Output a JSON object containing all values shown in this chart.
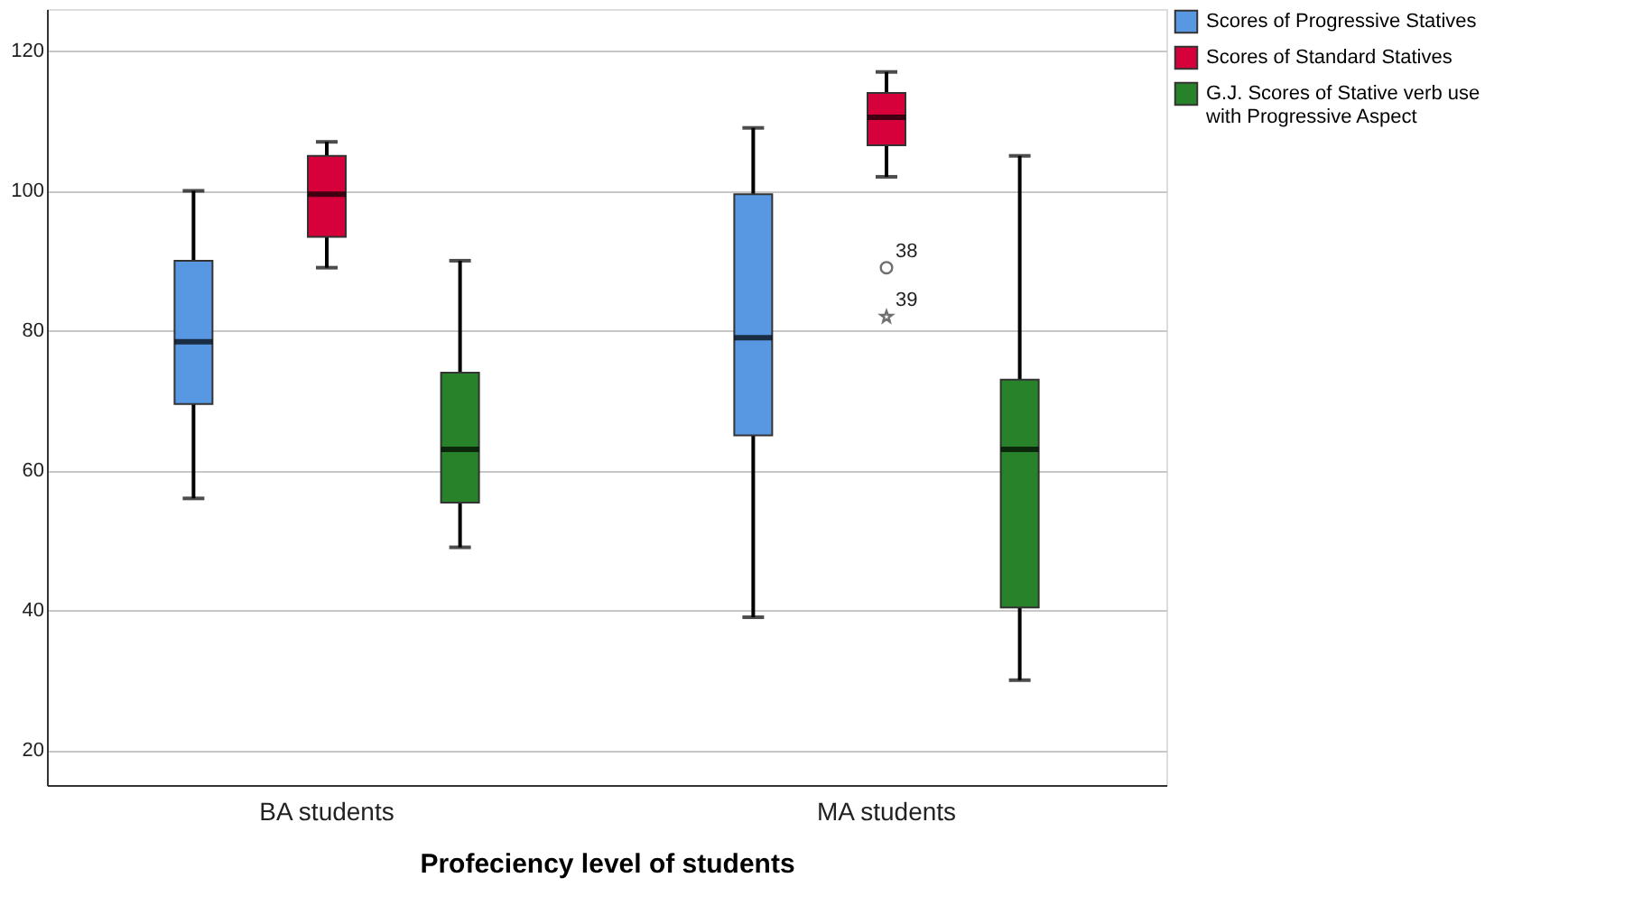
{
  "chart_data": {
    "type": "box",
    "xlabel": "Profeciency level of students",
    "categories": [
      "BA students",
      "MA students"
    ],
    "series": [
      {
        "name": "Scores of Progressive Statives",
        "color": "#5898e3",
        "boxes": [
          {
            "low": 56,
            "q1": 69.5,
            "median": 78.4,
            "q3": 90,
            "high": 100
          },
          {
            "low": 39,
            "q1": 65,
            "median": 79,
            "q3": 99.5,
            "high": 109
          }
        ]
      },
      {
        "name": "Scores of Standard Statives",
        "color": "#d6003a",
        "boxes": [
          {
            "low": 89,
            "q1": 93.4,
            "median": 99.5,
            "q3": 105,
            "high": 107
          },
          {
            "low": 102,
            "q1": 106.5,
            "median": 110.5,
            "q3": 114,
            "high": 117,
            "outliers": [
              89,
              82
            ]
          }
        ]
      },
      {
        "name": "G.J. Scores of Stative verb use with Progressive Aspect",
        "color": "#27822a",
        "boxes": [
          {
            "low": 49,
            "q1": 55.4,
            "median": 63,
            "q3": 74,
            "high": 90
          },
          {
            "low": 30,
            "q1": 40.4,
            "median": 63,
            "q3": 73,
            "high": 105
          }
        ]
      }
    ],
    "annotations": [
      "38",
      "39"
    ],
    "ylim": [
      15,
      126
    ],
    "yticks": [
      20,
      40,
      60,
      80,
      100,
      120
    ],
    "grid": "y",
    "legend": "top right"
  }
}
